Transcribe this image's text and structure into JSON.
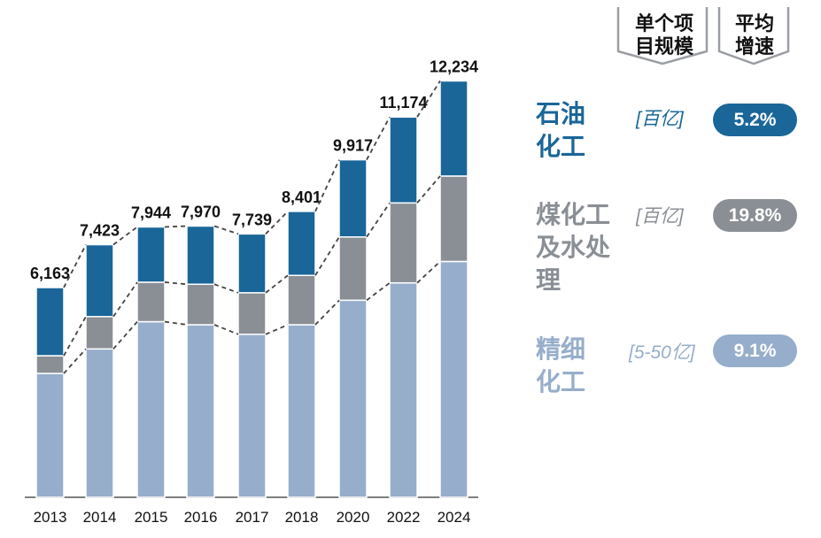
{
  "chart_data": {
    "type": "bar",
    "stacked": true,
    "categories": [
      "2013",
      "2014",
      "2015",
      "2016",
      "2017",
      "2018",
      "2020",
      "2022",
      "2024"
    ],
    "totals": [
      "6,163",
      "7,423",
      "7,944",
      "7,970",
      "7,739",
      "8,401",
      "9,917",
      "11,174",
      "12,234"
    ],
    "series": [
      {
        "name": "精细化工",
        "color": "#96AECB",
        "values": [
          3640,
          4360,
          5160,
          5070,
          4790,
          5070,
          5790,
          6300,
          6930
        ]
      },
      {
        "name": "煤化工及水处理",
        "color": "#8A8F96",
        "values": [
          520,
          950,
          1160,
          1190,
          1220,
          1450,
          1860,
          2350,
          2510
        ]
      },
      {
        "name": "石油化工",
        "color": "#1A6699",
        "values": [
          2003,
          2113,
          1624,
          1710,
          1729,
          1881,
          2267,
          2524,
          2794
        ]
      }
    ],
    "ylim": [
      0,
      12500
    ],
    "grid": false,
    "connector_lines": "dashed"
  },
  "legend": {
    "headers": {
      "scale": "单个项\n目规模",
      "growth": "平均\n增速"
    },
    "rows": [
      {
        "label": "石油\n化工",
        "unit": "[百亿]",
        "growth": "5.2%",
        "color": "#1A6699"
      },
      {
        "label": "煤化工\n及水处\n理",
        "unit": "[百亿]",
        "growth": "19.8%",
        "color": "#8A8F96"
      },
      {
        "label": "精细\n化工",
        "unit": "[5-50亿]",
        "growth": "9.1%",
        "color": "#96AECB"
      }
    ]
  }
}
